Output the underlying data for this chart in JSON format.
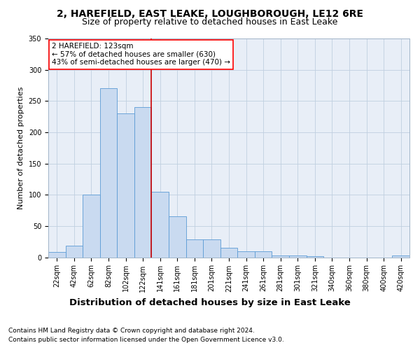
{
  "title1": "2, HAREFIELD, EAST LEAKE, LOUGHBOROUGH, LE12 6RE",
  "title2": "Size of property relative to detached houses in East Leake",
  "xlabel": "Distribution of detached houses by size in East Leake",
  "ylabel": "Number of detached properties",
  "annotation_title": "2 HAREFIELD: 123sqm",
  "annotation_line1": "← 57% of detached houses are smaller (630)",
  "annotation_line2": "43% of semi-detached houses are larger (470) →",
  "bar_categories": [
    "22sqm",
    "42sqm",
    "62sqm",
    "82sqm",
    "102sqm",
    "122sqm",
    "141sqm",
    "161sqm",
    "181sqm",
    "201sqm",
    "221sqm",
    "241sqm",
    "261sqm",
    "281sqm",
    "301sqm",
    "321sqm",
    "340sqm",
    "360sqm",
    "380sqm",
    "400sqm",
    "420sqm"
  ],
  "bar_values": [
    8,
    19,
    100,
    270,
    230,
    240,
    105,
    66,
    29,
    29,
    15,
    10,
    10,
    3,
    3,
    2,
    0,
    0,
    0,
    0,
    3
  ],
  "bar_color": "#c9daf0",
  "bar_edge_color": "#5b9bd5",
  "vline_color": "#cc0000",
  "vline_x": 5.5,
  "ylim": [
    0,
    350
  ],
  "yticks": [
    0,
    50,
    100,
    150,
    200,
    250,
    300,
    350
  ],
  "footer_line1": "Contains HM Land Registry data © Crown copyright and database right 2024.",
  "footer_line2": "Contains public sector information licensed under the Open Government Licence v3.0.",
  "bg_color": "#ffffff",
  "plot_bg_color": "#e8eef7",
  "grid_color": "#c0cfe0",
  "title1_fontsize": 10,
  "title2_fontsize": 9,
  "xlabel_fontsize": 9.5,
  "ylabel_fontsize": 8,
  "tick_fontsize": 7,
  "annotation_fontsize": 7.5,
  "footer_fontsize": 6.5
}
